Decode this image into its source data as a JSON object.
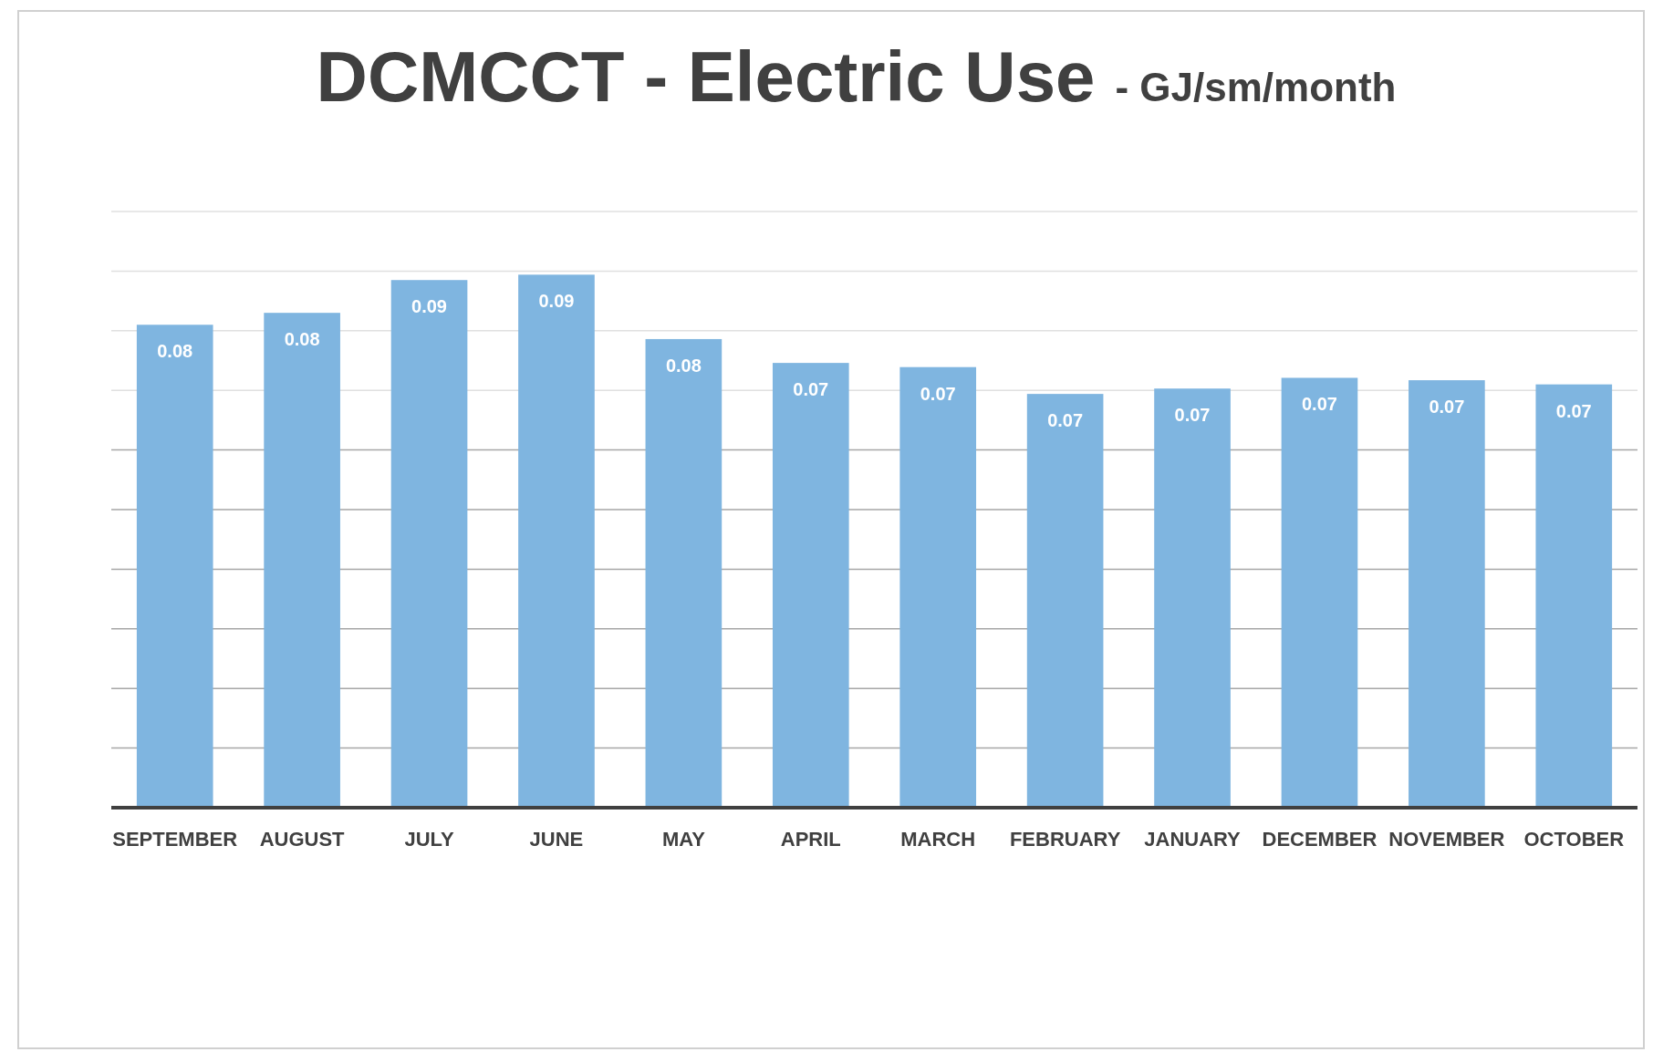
{
  "chart_data": {
    "type": "bar",
    "title": "DCMCCT - Electric Use",
    "subtitle": "- GJ/sm/month",
    "categories": [
      "SEPTEMBER",
      "AUGUST",
      "JULY",
      "JUNE",
      "MAY",
      "APRIL",
      "MARCH",
      "FEBRUARY",
      "JANUARY",
      "DECEMBER",
      "NOVEMBER",
      "OCTOBER"
    ],
    "values": [
      0.081,
      0.083,
      0.0885,
      0.0894,
      0.0786,
      0.0746,
      0.0739,
      0.0694,
      0.0703,
      0.0721,
      0.0717,
      0.071
    ],
    "value_labels": [
      "0.08",
      "0.08",
      "0.09",
      "0.09",
      "0.08",
      "0.07",
      "0.07",
      "0.07",
      "0.07",
      "0.07",
      "0.07",
      "0.07"
    ],
    "color": "#7fb5e0",
    "ylim": [
      0,
      0.1
    ],
    "yticks": [
      {
        "value": 0,
        "label": null
      },
      {
        "value": 0.01,
        "label": null
      },
      {
        "value": 0.02,
        "label": null
      },
      {
        "value": 0.03,
        "label": null
      },
      {
        "value": 0.04,
        "label": null
      },
      {
        "value": 0.05,
        "label": null
      },
      {
        "value": 0.06,
        "label": null
      },
      {
        "value": 0.07,
        "label": null
      },
      {
        "value": 0.08,
        "label": null
      },
      {
        "value": 0.09,
        "label": null
      },
      {
        "value": 0.1,
        "label": null
      }
    ],
    "tick_labels": "x",
    "grid": "y"
  }
}
